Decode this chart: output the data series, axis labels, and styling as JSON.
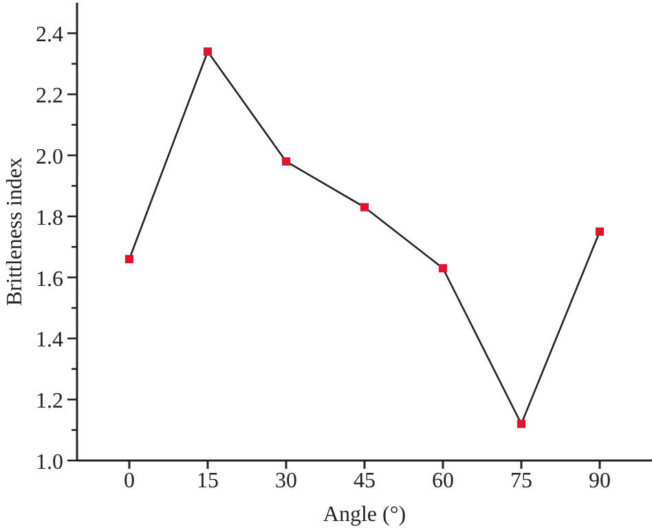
{
  "chart_data": {
    "type": "line",
    "xlabel": "Angle (°)",
    "ylabel": "Brittleness index",
    "x": [
      0,
      15,
      30,
      45,
      60,
      75,
      90
    ],
    "series": [
      {
        "color": "#e8112d",
        "values": [
          1.66,
          2.34,
          1.98,
          1.83,
          1.63,
          1.12,
          1.75
        ]
      }
    ],
    "xlim": [
      -10,
      100
    ],
    "xticks": [
      0,
      15,
      30,
      45,
      60,
      75,
      90
    ],
    "ylim": [
      1.0,
      2.5
    ],
    "yticks": [
      {
        "value": 1.0,
        "label": "1.0"
      },
      {
        "value": 1.1,
        "label": null
      },
      {
        "value": 1.2,
        "label": "1.2"
      },
      {
        "value": 1.3,
        "label": null
      },
      {
        "value": 1.4,
        "label": "1.4"
      },
      {
        "value": 1.5,
        "label": null
      },
      {
        "value": 1.6,
        "label": "1.6"
      },
      {
        "value": 1.7,
        "label": null
      },
      {
        "value": 1.8,
        "label": "1.8"
      },
      {
        "value": 1.9,
        "label": null
      },
      {
        "value": 2.0,
        "label": "2.0"
      },
      {
        "value": 2.1,
        "label": null
      },
      {
        "value": 2.2,
        "label": "2.2"
      },
      {
        "value": 2.3,
        "label": null
      },
      {
        "value": 2.4,
        "label": "2.4"
      }
    ],
    "marker": "square",
    "line_style": "solid"
  }
}
